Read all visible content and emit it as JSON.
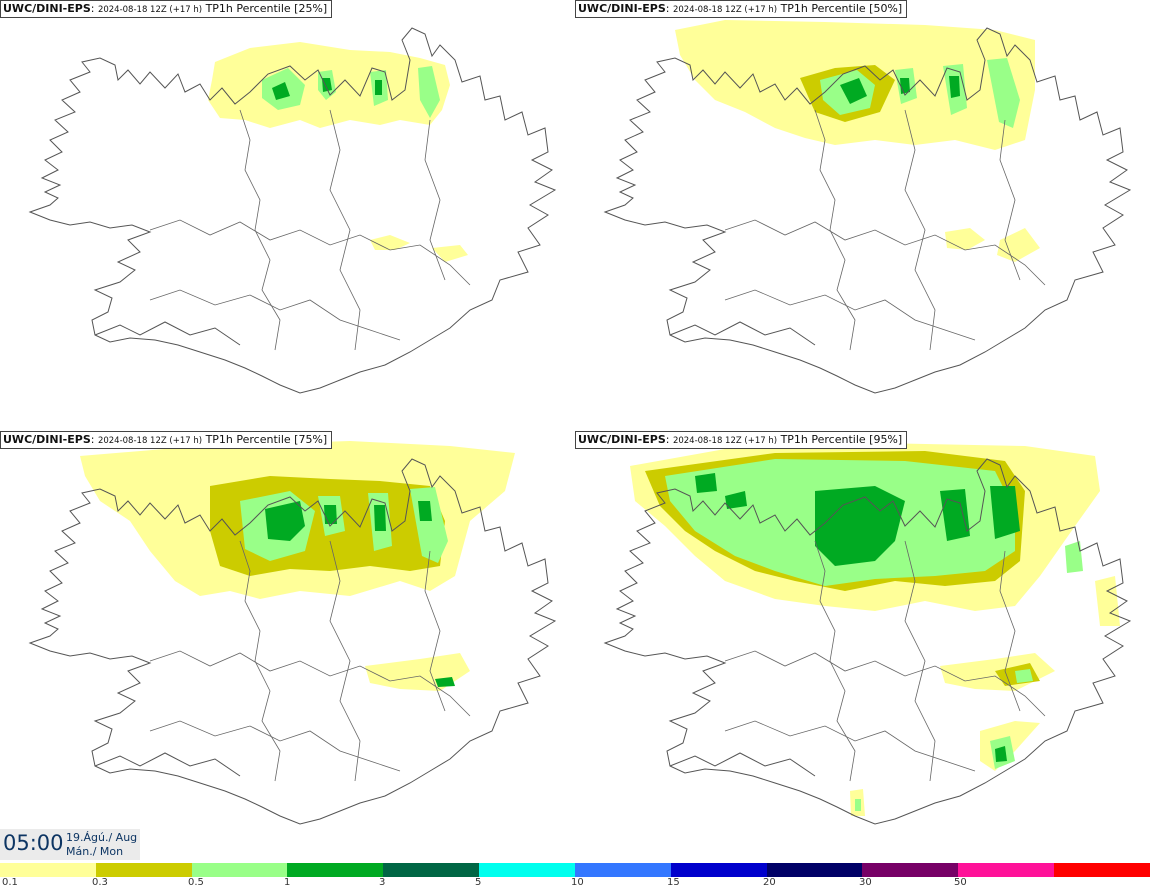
{
  "panels": [
    {
      "model": "UWC/DINI-EPS",
      "run": "2024-08-18 12Z (+17 h)",
      "field": "TP1h Percentile [25%]"
    },
    {
      "model": "UWC/DINI-EPS",
      "run": "2024-08-18 12Z (+17 h)",
      "field": "TP1h Percentile [50%]"
    },
    {
      "model": "UWC/DINI-EPS",
      "run": "2024-08-18 12Z (+17 h)",
      "field": "TP1h Percentile [75%]"
    },
    {
      "model": "UWC/DINI-EPS",
      "run": "2024-08-18 12Z (+17 h)",
      "field": "TP1h Percentile [95%]"
    }
  ],
  "time": {
    "clock": "05:00",
    "date_line": "19.Ágú./ Aug",
    "weekday_line": "Mán./ Mon"
  },
  "colorbar": {
    "colors": [
      "#ffff99",
      "#cccc00",
      "#99ff88",
      "#00aa22",
      "#006644",
      "#00ffee",
      "#3377ff",
      "#0000cc",
      "#000066",
      "#770066",
      "#ff1199",
      "#ff0000"
    ],
    "ticks": [
      "0.1",
      "0.3",
      "0.5",
      "1",
      "3",
      "5",
      "10",
      "15",
      "20",
      "30",
      "50"
    ]
  }
}
